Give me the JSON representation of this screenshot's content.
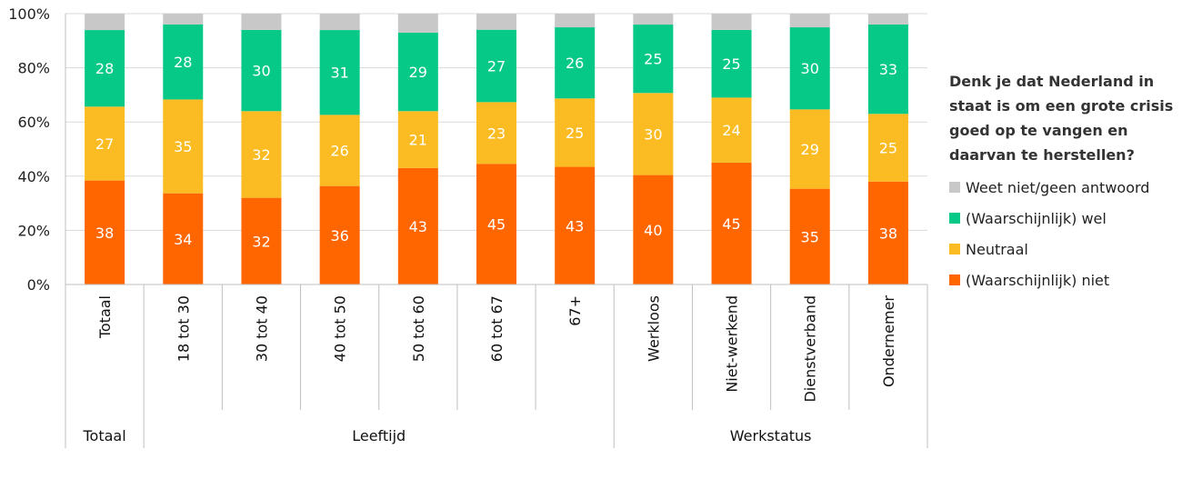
{
  "chart_data": {
    "type": "bar",
    "stacked": true,
    "percent": true,
    "categories": [
      "Totaal",
      "18 tot 30",
      "30 tot 40",
      "40 tot 50",
      "50 tot 60",
      "60 tot 67",
      "67+",
      "Werkloos",
      "Niet-werkend",
      "Dienstverband",
      "Ondernemer"
    ],
    "groups": [
      {
        "label": "Totaal",
        "count": 1
      },
      {
        "label": "Leeftijd",
        "count": 6
      },
      {
        "label": "Werkstatus",
        "count": 4
      }
    ],
    "series": [
      {
        "name": "(Waarschijnlijk) niet",
        "color": "#ff6600",
        "values": [
          38,
          34,
          32,
          36,
          43,
          45,
          43,
          40,
          45,
          35,
          38
        ]
      },
      {
        "name": "Neutraal",
        "color": "#fbbc23",
        "values": [
          27,
          35,
          32,
          26,
          21,
          23,
          25,
          30,
          24,
          29,
          25
        ]
      },
      {
        "name": "(Waarschijnlijk) wel",
        "color": "#06c987",
        "values": [
          28,
          28,
          30,
          31,
          29,
          27,
          26,
          25,
          25,
          30,
          33
        ]
      },
      {
        "name": "Weet niet/geen antwoord",
        "color": "#c8c8c8",
        "values": [
          6,
          4,
          6,
          6,
          7,
          6,
          5,
          4,
          6,
          5,
          4
        ],
        "labels_visible": false
      }
    ],
    "yticks": [
      "0%",
      "20%",
      "40%",
      "60%",
      "80%",
      "100%"
    ],
    "ylim": [
      0,
      100
    ],
    "legend_title": "Denk je dat Nederland in staat is om een grote crisis goed op te vangen en daarvan te herstellen?",
    "legend_order": [
      "Weet niet/geen antwoord",
      "(Waarschijnlijk) wel",
      "Neutraal",
      "(Waarschijnlijk) niet"
    ],
    "legend_position": "right",
    "grid": true
  }
}
